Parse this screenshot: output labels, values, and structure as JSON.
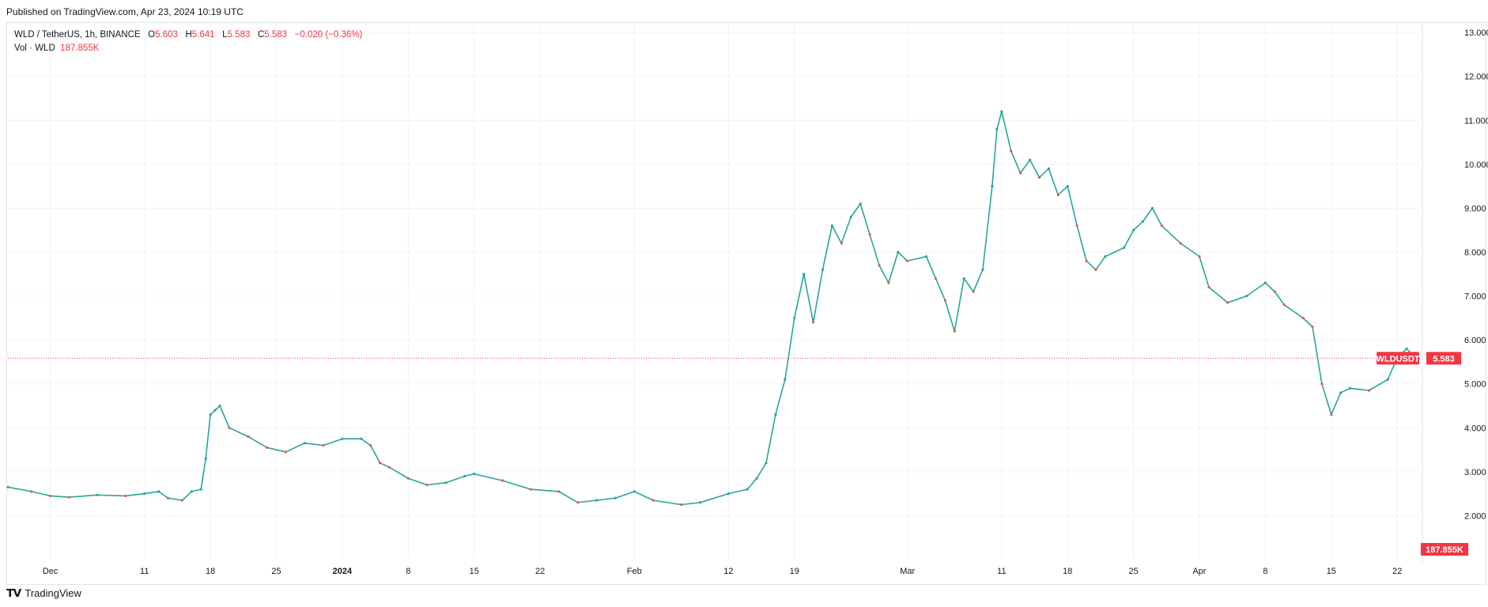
{
  "header": {
    "published": "Published on TradingView.com, Apr 23, 2024 10:19 UTC"
  },
  "legend": {
    "symbol": "WLD / TetherUS, 1h, BINANCE",
    "open_label": "O",
    "open": "5.603",
    "high_label": "H",
    "high": "5.641",
    "low_label": "L",
    "low": "5.583",
    "close_label": "C",
    "close": "5.583",
    "change": "−0.020 (−0.36%)",
    "vol_label": "Vol · WLD",
    "vol": "187.855K"
  },
  "badges": {
    "symbol": "WLDUSDT",
    "price": "5.583",
    "volume": "187.855K"
  },
  "footer": {
    "brand": "TradingView"
  },
  "colors": {
    "up": "#26a69a",
    "down": "#ef5350",
    "last": "#f23645",
    "grid": "#f0f3fa"
  },
  "chart_data": {
    "type": "line",
    "title": "WLD / TetherUS, 1h, BINANCE",
    "y_axis_ticks": [
      "13.000",
      "12.000",
      "11.000",
      "10.000",
      "9.000",
      "8.000",
      "7.000",
      "6.000",
      "5.000",
      "4.000",
      "3.000",
      "2.000"
    ],
    "ylim": [
      1.0,
      13.2
    ],
    "x_axis_ticks": [
      "Dec",
      "11",
      "18",
      "25",
      "2024",
      "8",
      "15",
      "22",
      "Feb",
      "12",
      "19",
      "Mar",
      "11",
      "18",
      "25",
      "Apr",
      "8",
      "15",
      "22"
    ],
    "x_axis_tick_days": [
      0,
      10,
      17,
      24,
      31,
      38,
      45,
      52,
      62,
      72,
      79,
      91,
      101,
      108,
      115,
      122,
      129,
      136,
      143
    ],
    "xlim_days": [
      -4.5,
      145.5
    ],
    "last_price": 5.583,
    "series": [
      {
        "name": "WLDUSDT",
        "points": [
          {
            "x": -4.5,
            "y": 2.65
          },
          {
            "x": -2,
            "y": 2.55
          },
          {
            "x": 0,
            "y": 2.45
          },
          {
            "x": 2,
            "y": 2.42
          },
          {
            "x": 5,
            "y": 2.47
          },
          {
            "x": 8,
            "y": 2.45
          },
          {
            "x": 10,
            "y": 2.5
          },
          {
            "x": 11.5,
            "y": 2.55
          },
          {
            "x": 12.5,
            "y": 2.4
          },
          {
            "x": 14,
            "y": 2.35
          },
          {
            "x": 15,
            "y": 2.55
          },
          {
            "x": 16,
            "y": 2.6
          },
          {
            "x": 16.5,
            "y": 3.3
          },
          {
            "x": 17,
            "y": 4.3
          },
          {
            "x": 17.5,
            "y": 4.4
          },
          {
            "x": 18,
            "y": 4.5
          },
          {
            "x": 19,
            "y": 4.0
          },
          {
            "x": 21,
            "y": 3.8
          },
          {
            "x": 23,
            "y": 3.55
          },
          {
            "x": 25,
            "y": 3.45
          },
          {
            "x": 27,
            "y": 3.65
          },
          {
            "x": 29,
            "y": 3.6
          },
          {
            "x": 31,
            "y": 3.75
          },
          {
            "x": 33,
            "y": 3.75
          },
          {
            "x": 34,
            "y": 3.6
          },
          {
            "x": 35,
            "y": 3.2
          },
          {
            "x": 36,
            "y": 3.1
          },
          {
            "x": 38,
            "y": 2.85
          },
          {
            "x": 40,
            "y": 2.7
          },
          {
            "x": 42,
            "y": 2.75
          },
          {
            "x": 44,
            "y": 2.9
          },
          {
            "x": 45,
            "y": 2.95
          },
          {
            "x": 48,
            "y": 2.8
          },
          {
            "x": 51,
            "y": 2.6
          },
          {
            "x": 54,
            "y": 2.55
          },
          {
            "x": 56,
            "y": 2.3
          },
          {
            "x": 58,
            "y": 2.35
          },
          {
            "x": 60,
            "y": 2.4
          },
          {
            "x": 62,
            "y": 2.55
          },
          {
            "x": 64,
            "y": 2.35
          },
          {
            "x": 67,
            "y": 2.25
          },
          {
            "x": 69,
            "y": 2.3
          },
          {
            "x": 72,
            "y": 2.5
          },
          {
            "x": 74,
            "y": 2.6
          },
          {
            "x": 75,
            "y": 2.85
          },
          {
            "x": 76,
            "y": 3.2
          },
          {
            "x": 77,
            "y": 4.3
          },
          {
            "x": 78,
            "y": 5.1
          },
          {
            "x": 79,
            "y": 6.5
          },
          {
            "x": 80,
            "y": 7.5
          },
          {
            "x": 81,
            "y": 6.4
          },
          {
            "x": 82,
            "y": 7.6
          },
          {
            "x": 83,
            "y": 8.6
          },
          {
            "x": 84,
            "y": 8.2
          },
          {
            "x": 85,
            "y": 8.8
          },
          {
            "x": 86,
            "y": 9.1
          },
          {
            "x": 87,
            "y": 8.4
          },
          {
            "x": 88,
            "y": 7.7
          },
          {
            "x": 89,
            "y": 7.3
          },
          {
            "x": 90,
            "y": 8.0
          },
          {
            "x": 91,
            "y": 7.8
          },
          {
            "x": 93,
            "y": 7.9
          },
          {
            "x": 94,
            "y": 7.4
          },
          {
            "x": 95,
            "y": 6.9
          },
          {
            "x": 96,
            "y": 6.2
          },
          {
            "x": 97,
            "y": 7.4
          },
          {
            "x": 98,
            "y": 7.1
          },
          {
            "x": 99,
            "y": 7.6
          },
          {
            "x": 100,
            "y": 9.5
          },
          {
            "x": 100.5,
            "y": 10.8
          },
          {
            "x": 101,
            "y": 11.2
          },
          {
            "x": 102,
            "y": 10.3
          },
          {
            "x": 103,
            "y": 9.8
          },
          {
            "x": 104,
            "y": 10.1
          },
          {
            "x": 105,
            "y": 9.7
          },
          {
            "x": 106,
            "y": 9.9
          },
          {
            "x": 107,
            "y": 9.3
          },
          {
            "x": 108,
            "y": 9.5
          },
          {
            "x": 109,
            "y": 8.6
          },
          {
            "x": 110,
            "y": 7.8
          },
          {
            "x": 111,
            "y": 7.6
          },
          {
            "x": 112,
            "y": 7.9
          },
          {
            "x": 114,
            "y": 8.1
          },
          {
            "x": 115,
            "y": 8.5
          },
          {
            "x": 116,
            "y": 8.7
          },
          {
            "x": 117,
            "y": 9.0
          },
          {
            "x": 118,
            "y": 8.6
          },
          {
            "x": 120,
            "y": 8.2
          },
          {
            "x": 122,
            "y": 7.9
          },
          {
            "x": 123,
            "y": 7.2
          },
          {
            "x": 125,
            "y": 6.85
          },
          {
            "x": 127,
            "y": 7.0
          },
          {
            "x": 129,
            "y": 7.3
          },
          {
            "x": 130,
            "y": 7.1
          },
          {
            "x": 131,
            "y": 6.8
          },
          {
            "x": 133,
            "y": 6.5
          },
          {
            "x": 134,
            "y": 6.3
          },
          {
            "x": 135,
            "y": 5.0
          },
          {
            "x": 136,
            "y": 4.3
          },
          {
            "x": 137,
            "y": 4.8
          },
          {
            "x": 138,
            "y": 4.9
          },
          {
            "x": 140,
            "y": 4.85
          },
          {
            "x": 142,
            "y": 5.1
          },
          {
            "x": 143,
            "y": 5.6
          },
          {
            "x": 144,
            "y": 5.8
          },
          {
            "x": 145,
            "y": 5.58
          }
        ]
      }
    ]
  }
}
